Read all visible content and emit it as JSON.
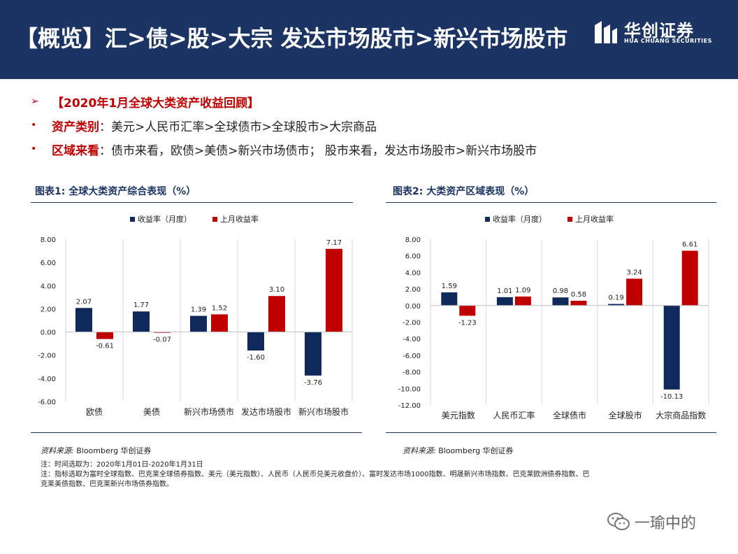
{
  "header": {
    "title": "【概览】汇>债>股>大宗 发达市场股市>新兴市场股市",
    "logo_name": "华创证券",
    "logo_sub": "HUA CHUANG SECURITIES"
  },
  "bullets": [
    {
      "bold": "【2020年1月全球大类资产收益回顾】",
      "text": ""
    },
    {
      "bold": "资产类别",
      "text": "：美元>人民币汇率>全球债市>全球股市>大宗商品"
    },
    {
      "bold": "区域来看",
      "text": "：债市来看，欧债>美债>新兴市场债市； 股市来看，发达市场股市>新兴市场股市"
    }
  ],
  "colors": {
    "navy": "#0f2a5a",
    "red": "#c00000",
    "header": "#1b3463"
  },
  "chart_data": [
    {
      "type": "bar",
      "title": "图表1:  全球大类资产综合表现（%）",
      "categories": [
        "欧债",
        "美债",
        "新兴市场债市",
        "发达市场股市",
        "新兴市场股市"
      ],
      "series": [
        {
          "name": "收益率（月度）",
          "values": [
            2.07,
            1.77,
            1.39,
            -1.6,
            -3.76
          ]
        },
        {
          "name": "上月收益率",
          "values": [
            -0.61,
            -0.07,
            1.52,
            3.1,
            7.17
          ]
        }
      ],
      "ylim": [
        -6,
        8
      ],
      "yticks": [
        "8.00",
        "6.00",
        "4.00",
        "2.00",
        "0.00",
        "-2.00",
        "-4.00",
        "-6.00"
      ],
      "legend": "top",
      "source": "Bloomberg  华创证券"
    },
    {
      "type": "bar",
      "title": "图表2:  大类资产区域表现（%）",
      "categories": [
        "美元指数",
        "人民币汇率",
        "全球债市",
        "全球股市",
        "大宗商品指数"
      ],
      "series": [
        {
          "name": "收益率（月度）",
          "values": [
            1.59,
            1.01,
            0.98,
            0.19,
            -10.13
          ]
        },
        {
          "name": "上月收益率",
          "values": [
            -1.23,
            1.09,
            0.58,
            3.24,
            6.61
          ]
        }
      ],
      "ylim": [
        -12,
        8
      ],
      "yticks": [
        "8.00",
        "6.00",
        "4.00",
        "2.00",
        "0.00",
        "-2.00",
        "-4.00",
        "-6.00",
        "-8.00",
        "-10.00",
        "-12.00"
      ],
      "legend": "top",
      "source": "Bloomberg  华创证券"
    }
  ],
  "source_label": "资料来源:",
  "notes": [
    "注：时间选取为：2020年1月01日-2020年1月31日",
    "注：指标选取为富时全球指数、巴克莱全球债券指数、美元（美元指数）、人民币（人民币兑美元收盘价）、富时发达市场1000指数、明晟新兴市场指数、巴克莱欧洲债券指数、巴",
    "克莱美债指数、巴克莱新兴市场债券指数。"
  ],
  "watermark": "一瑜中的"
}
